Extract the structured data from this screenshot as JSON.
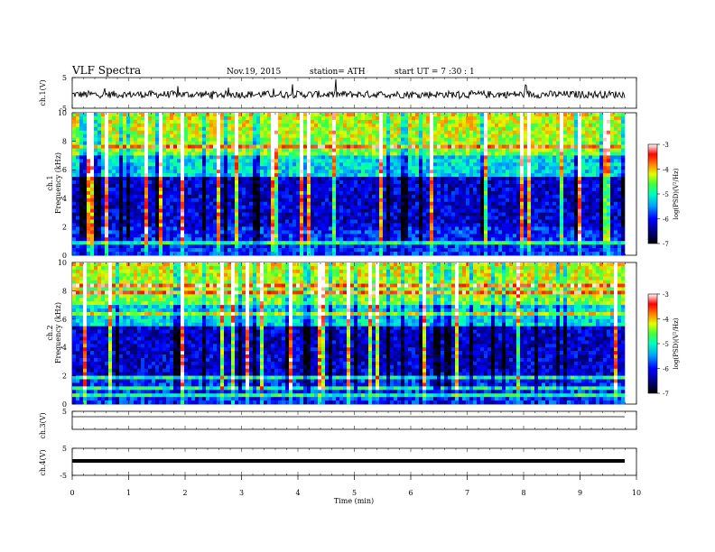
{
  "header": {
    "title": "VLF  Spectra",
    "date": "Nov.19, 2015",
    "station": "station= ATH",
    "start": "start  UT  =   7  :30 : 1"
  },
  "chart_data": [
    {
      "type": "line",
      "panel": "ch1-waveform",
      "ylabel": "ch.1(V)",
      "ylim": [
        -5,
        5
      ],
      "yticks": [
        5,
        -5
      ],
      "xlim": [
        0,
        10
      ],
      "description_values": {
        "baseline_v": -0.5,
        "noise_amplitude_v": 1.2
      }
    },
    {
      "type": "heatmap",
      "panel": "ch1-spectrogram",
      "ylabel": "ch.1\nFrequency  (kHz)",
      "ylim": [
        0,
        10
      ],
      "yticks": [
        0,
        2,
        4,
        6,
        8,
        10
      ],
      "xlim": [
        0,
        9.8
      ],
      "colorbar": {
        "label": "log(PSD)(V²/Hz)",
        "range": [
          -7,
          -3
        ],
        "ticks": [
          -3,
          -4,
          -5,
          -6,
          -7
        ]
      }
    },
    {
      "type": "heatmap",
      "panel": "ch2-spectrogram",
      "ylabel": "ch.2\nFrequency  (kHz)",
      "ylim": [
        0,
        10
      ],
      "yticks": [
        0,
        2,
        4,
        6,
        8,
        10
      ],
      "xlim": [
        0,
        9.8
      ],
      "colorbar": {
        "label": "log(PSD)(V²/Hz)",
        "range": [
          -7,
          -3
        ],
        "ticks": [
          -3,
          -4,
          -5,
          -6,
          -7
        ]
      }
    },
    {
      "type": "line",
      "panel": "ch3-waveform",
      "ylabel": "ch.3(V)",
      "ylim": [
        -5,
        5
      ],
      "yticks": [
        5
      ],
      "xlim": [
        0,
        10
      ],
      "description_values": {
        "baseline_v": 0
      }
    },
    {
      "type": "line",
      "panel": "ch4-waveform",
      "ylabel": "ch.4(V)",
      "ylim": [
        -5,
        5
      ],
      "yticks": [
        5,
        -5
      ],
      "xlim": [
        0,
        10
      ],
      "xlabel": "Time  (min)",
      "xticks": [
        0,
        1,
        2,
        3,
        4,
        5,
        6,
        7,
        8,
        9,
        10
      ],
      "description_values": {
        "baseline_v": -0.2
      }
    }
  ]
}
